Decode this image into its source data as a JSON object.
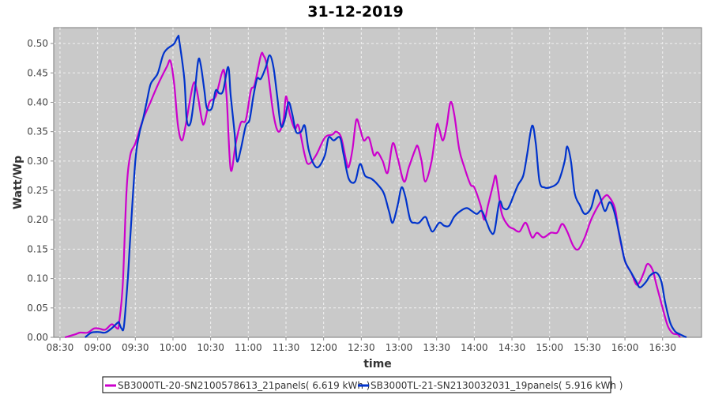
{
  "chart_data": {
    "type": "line",
    "title": "31-12-2019",
    "xlabel": "time",
    "ylabel": "Watt/Wp",
    "x_unit": "minutes since midnight",
    "xlim": [
      505,
      1021
    ],
    "ylim": [
      0,
      0.527
    ],
    "grid": true,
    "legend_position": "bottom",
    "x_ticks": [
      {
        "value": 510,
        "label": "08:30"
      },
      {
        "value": 540,
        "label": "09:00"
      },
      {
        "value": 570,
        "label": "09:30"
      },
      {
        "value": 600,
        "label": "10:00"
      },
      {
        "value": 630,
        "label": "10:30"
      },
      {
        "value": 660,
        "label": "11:00"
      },
      {
        "value": 690,
        "label": "11:30"
      },
      {
        "value": 720,
        "label": "12:00"
      },
      {
        "value": 750,
        "label": "12:30"
      },
      {
        "value": 780,
        "label": "13:00"
      },
      {
        "value": 810,
        "label": "13:30"
      },
      {
        "value": 840,
        "label": "14:00"
      },
      {
        "value": 870,
        "label": "14:30"
      },
      {
        "value": 900,
        "label": "15:00"
      },
      {
        "value": 930,
        "label": "15:30"
      },
      {
        "value": 960,
        "label": "16:00"
      },
      {
        "value": 990,
        "label": "16:30"
      }
    ],
    "y_ticks": [
      {
        "value": 0,
        "label": "0.00"
      },
      {
        "value": 0.05,
        "label": "0.05"
      },
      {
        "value": 0.1,
        "label": "0.10"
      },
      {
        "value": 0.15,
        "label": "0.15"
      },
      {
        "value": 0.2,
        "label": "0.20"
      },
      {
        "value": 0.25,
        "label": "0.25"
      },
      {
        "value": 0.3,
        "label": "0.30"
      },
      {
        "value": 0.35,
        "label": "0.35"
      },
      {
        "value": 0.4,
        "label": "0.40"
      },
      {
        "value": 0.45,
        "label": "0.45"
      },
      {
        "value": 0.5,
        "label": "0.50"
      }
    ],
    "series": [
      {
        "name": "SB3000TL-20-SN2100578613_21panels( 6.619 kWh )",
        "color": "#cc00cc",
        "points": [
          [
            514,
            0
          ],
          [
            522,
            0.005
          ],
          [
            526,
            0.008
          ],
          [
            532,
            0.008
          ],
          [
            537,
            0.015
          ],
          [
            541,
            0.015
          ],
          [
            546,
            0.013
          ],
          [
            551,
            0.022
          ],
          [
            554,
            0.018
          ],
          [
            556,
            0.015
          ],
          [
            557,
            0.023
          ],
          [
            560,
            0.09
          ],
          [
            563,
            0.25
          ],
          [
            566,
            0.31
          ],
          [
            570,
            0.33
          ],
          [
            576,
            0.37
          ],
          [
            582,
            0.4
          ],
          [
            588,
            0.43
          ],
          [
            595,
            0.46
          ],
          [
            598,
            0.47
          ],
          [
            601,
            0.43
          ],
          [
            604,
            0.36
          ],
          [
            607,
            0.335
          ],
          [
            610,
            0.36
          ],
          [
            616,
            0.43
          ],
          [
            619,
            0.42
          ],
          [
            623,
            0.37
          ],
          [
            625,
            0.365
          ],
          [
            629,
            0.4
          ],
          [
            634,
            0.41
          ],
          [
            639,
            0.45
          ],
          [
            641,
            0.45
          ],
          [
            643,
            0.4
          ],
          [
            646,
            0.285
          ],
          [
            650,
            0.33
          ],
          [
            654,
            0.365
          ],
          [
            658,
            0.37
          ],
          [
            662,
            0.42
          ],
          [
            665,
            0.43
          ],
          [
            670,
            0.48
          ],
          [
            672,
            0.48
          ],
          [
            675,
            0.46
          ],
          [
            680,
            0.38
          ],
          [
            684,
            0.35
          ],
          [
            688,
            0.37
          ],
          [
            690,
            0.41
          ],
          [
            693,
            0.38
          ],
          [
            697,
            0.355
          ],
          [
            700,
            0.36
          ],
          [
            705,
            0.31
          ],
          [
            708,
            0.295
          ],
          [
            714,
            0.31
          ],
          [
            721,
            0.34
          ],
          [
            727,
            0.345
          ],
          [
            730,
            0.35
          ],
          [
            734,
            0.34
          ],
          [
            738,
            0.3
          ],
          [
            740,
            0.29
          ],
          [
            743,
            0.32
          ],
          [
            746,
            0.37
          ],
          [
            749,
            0.355
          ],
          [
            752,
            0.335
          ],
          [
            756,
            0.34
          ],
          [
            760,
            0.31
          ],
          [
            763,
            0.315
          ],
          [
            767,
            0.3
          ],
          [
            771,
            0.28
          ],
          [
            775,
            0.33
          ],
          [
            779,
            0.305
          ],
          [
            784,
            0.265
          ],
          [
            788,
            0.29
          ],
          [
            793,
            0.32
          ],
          [
            795,
            0.325
          ],
          [
            798,
            0.3
          ],
          [
            801,
            0.265
          ],
          [
            806,
            0.3
          ],
          [
            810,
            0.36
          ],
          [
            812,
            0.355
          ],
          [
            815,
            0.335
          ],
          [
            818,
            0.36
          ],
          [
            821,
            0.4
          ],
          [
            824,
            0.38
          ],
          [
            828,
            0.32
          ],
          [
            832,
            0.29
          ],
          [
            837,
            0.26
          ],
          [
            840,
            0.255
          ],
          [
            845,
            0.225
          ],
          [
            848,
            0.2
          ],
          [
            851,
            0.225
          ],
          [
            855,
            0.26
          ],
          [
            857,
            0.275
          ],
          [
            859,
            0.25
          ],
          [
            862,
            0.21
          ],
          [
            867,
            0.19
          ],
          [
            871,
            0.185
          ],
          [
            876,
            0.18
          ],
          [
            881,
            0.195
          ],
          [
            886,
            0.17
          ],
          [
            890,
            0.178
          ],
          [
            895,
            0.17
          ],
          [
            901,
            0.178
          ],
          [
            906,
            0.178
          ],
          [
            910,
            0.193
          ],
          [
            914,
            0.18
          ],
          [
            919,
            0.155
          ],
          [
            923,
            0.15
          ],
          [
            928,
            0.17
          ],
          [
            933,
            0.2
          ],
          [
            939,
            0.225
          ],
          [
            944,
            0.24
          ],
          [
            947,
            0.24
          ],
          [
            952,
            0.22
          ],
          [
            955,
            0.18
          ],
          [
            960,
            0.13
          ],
          [
            965,
            0.11
          ],
          [
            969,
            0.09
          ],
          [
            972,
            0.095
          ],
          [
            975,
            0.11
          ],
          [
            978,
            0.125
          ],
          [
            982,
            0.115
          ],
          [
            985,
            0.09
          ],
          [
            990,
            0.05
          ],
          [
            994,
            0.02
          ],
          [
            998,
            0.007
          ],
          [
            1002,
            0.005
          ],
          [
            1004,
            0
          ]
        ]
      },
      {
        "name": "SB3000TL-21-SN2130032031_19panels( 5.916 kWh )",
        "color": "#0033cc",
        "points": [
          [
            530,
            0
          ],
          [
            535,
            0.008
          ],
          [
            541,
            0.009
          ],
          [
            546,
            0.008
          ],
          [
            551,
            0.015
          ],
          [
            556,
            0.025
          ],
          [
            557,
            0.025
          ],
          [
            559,
            0.015
          ],
          [
            561,
            0.02
          ],
          [
            564,
            0.1
          ],
          [
            566,
            0.17
          ],
          [
            570,
            0.3
          ],
          [
            573,
            0.345
          ],
          [
            576,
            0.37
          ],
          [
            579,
            0.4
          ],
          [
            582,
            0.43
          ],
          [
            585,
            0.44
          ],
          [
            588,
            0.45
          ],
          [
            592,
            0.48
          ],
          [
            595,
            0.49
          ],
          [
            598,
            0.495
          ],
          [
            601,
            0.5
          ],
          [
            604,
            0.512
          ],
          [
            605,
            0.505
          ],
          [
            609,
            0.44
          ],
          [
            611,
            0.37
          ],
          [
            614,
            0.365
          ],
          [
            617,
            0.41
          ],
          [
            620,
            0.47
          ],
          [
            622,
            0.465
          ],
          [
            625,
            0.42
          ],
          [
            627,
            0.39
          ],
          [
            631,
            0.39
          ],
          [
            634,
            0.42
          ],
          [
            637,
            0.415
          ],
          [
            640,
            0.42
          ],
          [
            644,
            0.46
          ],
          [
            646,
            0.41
          ],
          [
            649,
            0.35
          ],
          [
            651,
            0.3
          ],
          [
            654,
            0.32
          ],
          [
            658,
            0.36
          ],
          [
            661,
            0.37
          ],
          [
            664,
            0.41
          ],
          [
            667,
            0.44
          ],
          [
            670,
            0.44
          ],
          [
            674,
            0.46
          ],
          [
            677,
            0.48
          ],
          [
            680,
            0.46
          ],
          [
            683,
            0.41
          ],
          [
            686,
            0.36
          ],
          [
            689,
            0.37
          ],
          [
            692,
            0.4
          ],
          [
            695,
            0.38
          ],
          [
            698,
            0.35
          ],
          [
            702,
            0.35
          ],
          [
            705,
            0.36
          ],
          [
            708,
            0.32
          ],
          [
            712,
            0.295
          ],
          [
            716,
            0.29
          ],
          [
            721,
            0.31
          ],
          [
            724,
            0.34
          ],
          [
            728,
            0.335
          ],
          [
            733,
            0.34
          ],
          [
            736,
            0.31
          ],
          [
            740,
            0.27
          ],
          [
            745,
            0.265
          ],
          [
            749,
            0.295
          ],
          [
            753,
            0.275
          ],
          [
            758,
            0.27
          ],
          [
            763,
            0.26
          ],
          [
            768,
            0.245
          ],
          [
            772,
            0.215
          ],
          [
            775,
            0.195
          ],
          [
            779,
            0.225
          ],
          [
            782,
            0.255
          ],
          [
            785,
            0.24
          ],
          [
            789,
            0.2
          ],
          [
            793,
            0.195
          ],
          [
            796,
            0.195
          ],
          [
            801,
            0.205
          ],
          [
            804,
            0.19
          ],
          [
            807,
            0.18
          ],
          [
            812,
            0.195
          ],
          [
            816,
            0.19
          ],
          [
            820,
            0.19
          ],
          [
            824,
            0.205
          ],
          [
            829,
            0.215
          ],
          [
            834,
            0.22
          ],
          [
            838,
            0.215
          ],
          [
            842,
            0.21
          ],
          [
            846,
            0.215
          ],
          [
            850,
            0.195
          ],
          [
            853,
            0.18
          ],
          [
            856,
            0.18
          ],
          [
            860,
            0.23
          ],
          [
            863,
            0.22
          ],
          [
            867,
            0.22
          ],
          [
            872,
            0.245
          ],
          [
            875,
            0.26
          ],
          [
            879,
            0.275
          ],
          [
            882,
            0.31
          ],
          [
            886,
            0.36
          ],
          [
            889,
            0.33
          ],
          [
            892,
            0.265
          ],
          [
            896,
            0.255
          ],
          [
            900,
            0.255
          ],
          [
            905,
            0.26
          ],
          [
            908,
            0.27
          ],
          [
            912,
            0.3
          ],
          [
            914,
            0.325
          ],
          [
            917,
            0.3
          ],
          [
            920,
            0.245
          ],
          [
            924,
            0.225
          ],
          [
            928,
            0.21
          ],
          [
            933,
            0.22
          ],
          [
            937,
            0.25
          ],
          [
            940,
            0.24
          ],
          [
            944,
            0.215
          ],
          [
            948,
            0.23
          ],
          [
            952,
            0.21
          ],
          [
            957,
            0.16
          ],
          [
            960,
            0.13
          ],
          [
            965,
            0.11
          ],
          [
            969,
            0.095
          ],
          [
            972,
            0.085
          ],
          [
            977,
            0.095
          ],
          [
            980,
            0.105
          ],
          [
            985,
            0.11
          ],
          [
            989,
            0.095
          ],
          [
            992,
            0.06
          ],
          [
            996,
            0.025
          ],
          [
            1000,
            0.01
          ],
          [
            1004,
            0.005
          ],
          [
            1009,
            0
          ]
        ]
      }
    ]
  }
}
